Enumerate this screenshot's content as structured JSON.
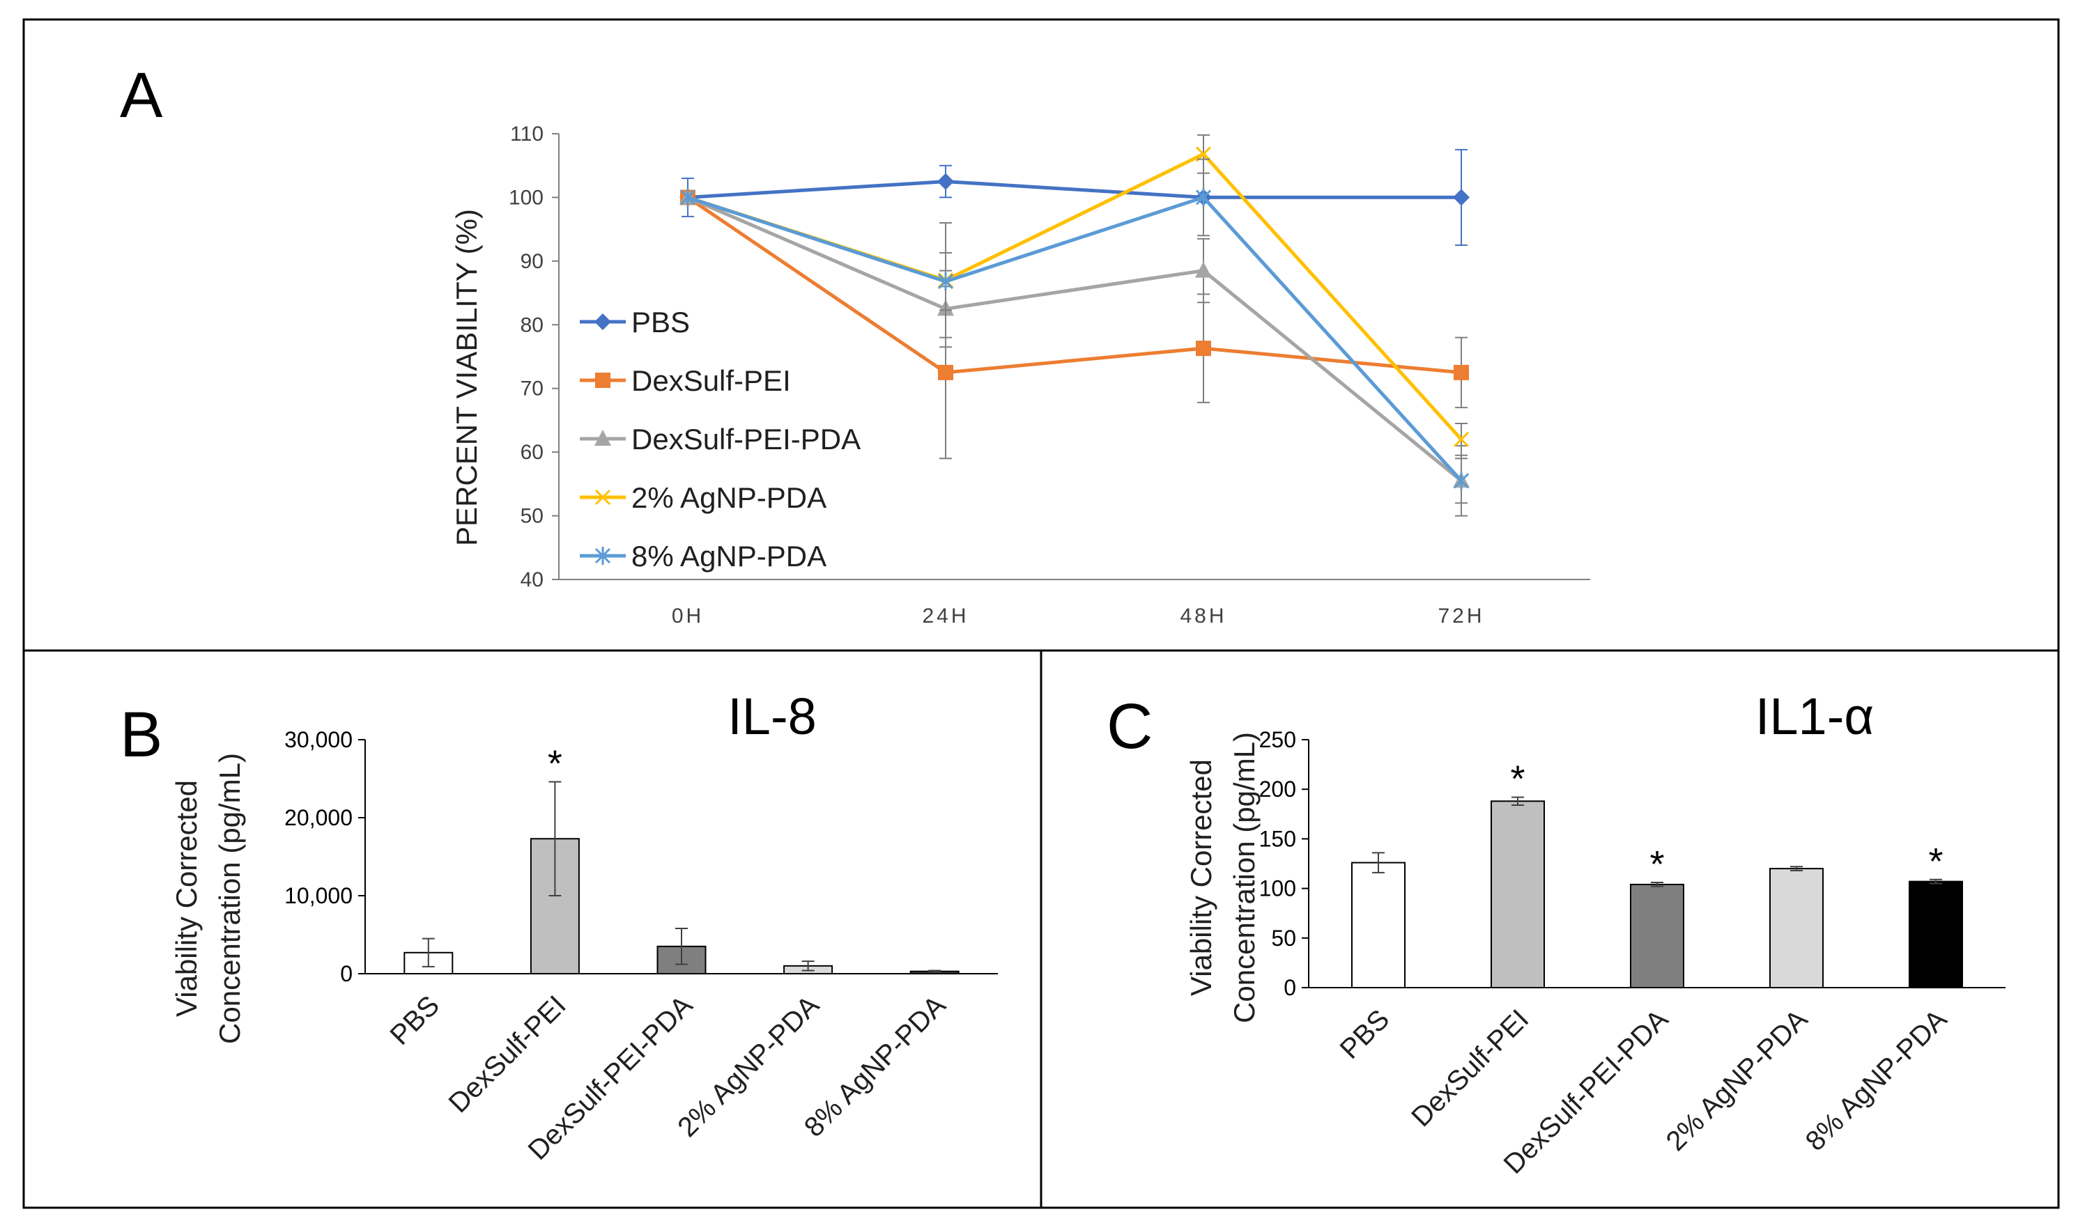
{
  "chart_data": [
    {
      "panel": "A",
      "type": "line",
      "title": "",
      "ylabel": "PERCENT VIABILITY (%)",
      "xlabel": "",
      "ylim": [
        40,
        110
      ],
      "yticks": [
        "40",
        "50",
        "60",
        "70",
        "80",
        "90",
        "100",
        "110"
      ],
      "categories": [
        "0H",
        "24H",
        "48H",
        "72H"
      ],
      "legend_position": "left-inside",
      "series": [
        {
          "name": "PBS",
          "color": "#4472C4",
          "marker": "diamond",
          "values": [
            100,
            102.5,
            100,
            100
          ],
          "errors": [
            3,
            2.5,
            0,
            7.5
          ]
        },
        {
          "name": "DexSulf-PEI",
          "color": "#ED7D31",
          "marker": "square",
          "values": [
            100,
            72.5,
            76.3,
            72.5
          ],
          "errors": [
            0,
            13.5,
            8.5,
            5.5
          ]
        },
        {
          "name": "DexSulf-PEI-PDA",
          "color": "#A5A5A5",
          "marker": "triangle",
          "values": [
            100,
            82.5,
            88.5,
            55.5
          ],
          "errors": [
            0,
            6,
            5,
            5.5
          ]
        },
        {
          "name": "2% AgNP-PDA",
          "color": "#FFC000",
          "marker": "x",
          "values": [
            100,
            87,
            106.8,
            62
          ],
          "errors": [
            0,
            9,
            3,
            2.5
          ]
        },
        {
          "name": "8% AgNP-PDA",
          "color": "#5B9BD5",
          "marker": "asterisk",
          "values": [
            100,
            86.8,
            100,
            55.5
          ],
          "errors": [
            0,
            4.5,
            6,
            3.5
          ]
        }
      ]
    },
    {
      "panel": "B",
      "type": "bar",
      "title": "IL-8",
      "ylabel": [
        "Viability Corrected",
        "Concentration (pg/mL)"
      ],
      "ylim": [
        0,
        30000
      ],
      "yticks": [
        "0",
        "10,000",
        "20,000",
        "30,000"
      ],
      "categories": [
        "PBS",
        "DexSulf-PEI",
        "DexSulf-PEI-PDA",
        "2% AgNP-PDA",
        "8% AgNP-PDA"
      ],
      "values": [
        2700,
        17300,
        3500,
        1000,
        300
      ],
      "errors": [
        1800,
        7300,
        2300,
        600,
        100
      ],
      "colors": [
        "#FFFFFF",
        "#BFBFBF",
        "#7F7F7F",
        "#D9D9D9",
        "#404040"
      ],
      "significance": [
        "",
        "*",
        "",
        "",
        ""
      ]
    },
    {
      "panel": "C",
      "type": "bar",
      "title": "IL1-α",
      "ylabel": [
        "Viability Corrected",
        "Concentration (pg/mL)"
      ],
      "ylim": [
        0,
        250
      ],
      "yticks": [
        "0",
        "50",
        "100",
        "150",
        "200",
        "250"
      ],
      "categories": [
        "PBS",
        "DexSulf-PEI",
        "DexSulf-PEI-PDA",
        "2% AgNP-PDA",
        "8% AgNP-PDA"
      ],
      "values": [
        126,
        188,
        104,
        120,
        107
      ],
      "errors": [
        10,
        4,
        2,
        2,
        2
      ],
      "colors": [
        "#FFFFFF",
        "#BFBFBF",
        "#7F7F7F",
        "#D9D9D9",
        "#000000"
      ],
      "significance": [
        "",
        "*",
        "*",
        "",
        "*"
      ]
    }
  ]
}
